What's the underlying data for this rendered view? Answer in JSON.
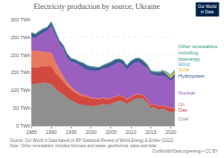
{
  "chart_data": {
    "type": "area",
    "title": "Electricity production by source, Ukraine",
    "annotations": {
      "source": "Source: Our World in Data based on BP Statistical Review of World Energy & Ember (2022)",
      "note": "Note: 'Other renewables' includes biomass and waste, geothermal, wave and tidal.",
      "credit": "OurWorldInData.org/energy • CC BY",
      "logo": "Our World in Data"
    },
    "x": [
      1985,
      1986,
      1987,
      1988,
      1989,
      1990,
      1991,
      1992,
      1993,
      1994,
      1995,
      1996,
      1997,
      1998,
      1999,
      2000,
      2001,
      2002,
      2003,
      2004,
      2005,
      2006,
      2007,
      2008,
      2009,
      2010,
      2011,
      2012,
      2013,
      2014,
      2015,
      2016,
      2017,
      2018,
      2019,
      2020,
      2021
    ],
    "series": [
      {
        "name": "Coal",
        "color": "#8f8f8f",
        "values": [
          118,
          118,
          120,
          122,
          120,
          118,
          105,
          95,
          88,
          78,
          72,
          65,
          60,
          58,
          58,
          55,
          56,
          57,
          62,
          58,
          62,
          66,
          70,
          68,
          62,
          68,
          75,
          78,
          76,
          66,
          50,
          52,
          44,
          48,
          44,
          38,
          40
        ]
      },
      {
        "name": "Gas",
        "color": "#d1493f",
        "values": [
          45,
          46,
          46,
          46,
          48,
          50,
          45,
          42,
          38,
          34,
          30,
          28,
          27,
          25,
          24,
          22,
          20,
          18,
          17,
          16,
          16,
          16,
          15,
          14,
          12,
          12,
          12,
          11,
          10,
          9,
          8,
          9,
          10,
          9,
          9,
          11,
          10
        ]
      },
      {
        "name": "Oil",
        "color": "#e8785e",
        "values": [
          50,
          48,
          45,
          42,
          40,
          38,
          30,
          22,
          15,
          10,
          8,
          6,
          5,
          4,
          3,
          2,
          2,
          2,
          1.5,
          1.5,
          1,
          1,
          1,
          1,
          1,
          1,
          1,
          1,
          1,
          1,
          0.8,
          0.8,
          0.8,
          0.8,
          0.8,
          0.8,
          0.8
        ]
      },
      {
        "name": "Nuclear",
        "color": "#9b5fc0",
        "values": [
          38,
          35,
          45,
          52,
          60,
          76,
          75,
          74,
          75,
          69,
          70,
          79,
          79,
          75,
          72,
          77,
          76,
          78,
          81,
          87,
          89,
          91,
          93,
          90,
          83,
          89,
          90,
          90,
          83,
          88,
          88,
          81,
          85,
          84,
          83,
          76,
          86
        ]
      },
      {
        "name": "Hydropower",
        "color": "#3d5a99",
        "values": [
          12,
          12,
          11,
          12,
          10,
          11,
          12,
          8,
          11,
          12,
          10,
          9,
          10,
          15,
          13,
          11,
          12,
          10,
          9,
          12,
          12,
          13,
          10,
          12,
          12,
          13,
          11,
          11,
          14,
          9,
          7,
          9,
          11,
          12,
          8,
          7.5,
          10
        ]
      },
      {
        "name": "Solar",
        "color": "#e8b529",
        "values": [
          0,
          0,
          0,
          0,
          0,
          0,
          0,
          0,
          0,
          0,
          0,
          0,
          0,
          0,
          0,
          0,
          0,
          0,
          0,
          0,
          0,
          0,
          0,
          0,
          0,
          0,
          0.03,
          0.4,
          0.6,
          0.5,
          0.5,
          0.5,
          0.7,
          1.2,
          3.9,
          6,
          7.5
        ]
      },
      {
        "name": "Wind",
        "color": "#4ea1d3",
        "values": [
          0,
          0,
          0,
          0,
          0,
          0,
          0,
          0,
          0,
          0,
          0,
          0,
          0,
          0,
          0,
          0,
          0,
          0,
          0,
          0,
          0,
          0,
          0,
          0,
          0,
          0.05,
          0.09,
          0.26,
          0.64,
          1.1,
          1.1,
          0.9,
          1,
          1.2,
          2.8,
          3.3,
          3.3
        ]
      },
      {
        "name": "Other renewables including bioenergy",
        "color": "#2b9a8b",
        "values": [
          0,
          0,
          0,
          0,
          0,
          0,
          0,
          0,
          0,
          0,
          0,
          0,
          0,
          0,
          0,
          0,
          0,
          0,
          0,
          0,
          0,
          0,
          0,
          0,
          0,
          0.1,
          0.1,
          0.1,
          0.2,
          0.2,
          0.2,
          0.3,
          0.3,
          0.4,
          0.5,
          0.7,
          0.8
        ]
      }
    ],
    "xlim": [
      1985,
      2021
    ],
    "ylim": [
      0,
      300
    ],
    "xticks": [
      1985,
      1990,
      1995,
      2000,
      2005,
      2010,
      2015,
      2020
    ],
    "yticks": [
      {
        "value": 0,
        "label": "0 TWh"
      },
      {
        "value": 50,
        "label": "50 TWh"
      },
      {
        "value": 100,
        "label": "100 TWh"
      },
      {
        "value": 150,
        "label": "150 TWh"
      },
      {
        "value": 200,
        "label": "200 TWh"
      },
      {
        "value": 250,
        "label": "250 TWh"
      },
      {
        "value": 300,
        "label": "300 TWh"
      }
    ],
    "stacked": true,
    "grid": true,
    "legend": "right"
  }
}
